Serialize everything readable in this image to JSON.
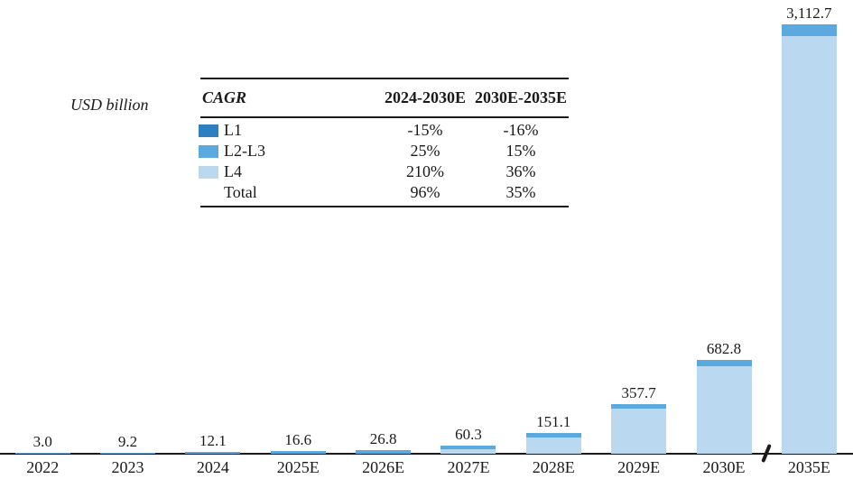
{
  "unit_label": "USD billion",
  "colors": {
    "l1": "#2E7FC2",
    "l2l3": "#5BA9DE",
    "l4": "#BAD8EF",
    "axis": "#1A1A1A"
  },
  "cagr_table": {
    "header": [
      "CAGR",
      "2024-2030E",
      "2030E-2035E"
    ],
    "rows": [
      {
        "label": "L1",
        "swatch": "l1",
        "col1": "-15%",
        "col2": "-16%"
      },
      {
        "label": "L2-L3",
        "swatch": "l2l3",
        "col1": "25%",
        "col2": "15%"
      },
      {
        "label": "L4",
        "swatch": "l4",
        "col1": "210%",
        "col2": "36%"
      },
      {
        "label": "Total",
        "swatch": "",
        "col1": "96%",
        "col2": "35%"
      }
    ]
  },
  "chart_data": {
    "type": "bar",
    "stacked": true,
    "title": "",
    "ylabel": "USD billion",
    "xlabel": "",
    "gridlines": false,
    "y_axis_shown": false,
    "x_axis_break_between": [
      "2030E",
      "2035E"
    ],
    "legend_entries": [
      "L1",
      "L2-L3",
      "L4"
    ],
    "categories": [
      "2022",
      "2023",
      "2024",
      "2025E",
      "2026E",
      "2027E",
      "2028E",
      "2029E",
      "2030E",
      "2035E"
    ],
    "totals": [
      3.0,
      9.2,
      12.1,
      16.6,
      26.8,
      60.3,
      151.1,
      357.7,
      682.8,
      3112.7
    ],
    "total_labels": [
      "3.0",
      "9.2",
      "12.1",
      "16.6",
      "26.8",
      "60.3",
      "151.1",
      "357.7",
      "682.8",
      "3,112.7"
    ],
    "series": [
      {
        "name": "L2-L3",
        "color_key": "l2l3",
        "values_estimated": true,
        "values": [
          3.0,
          9.2,
          12.1,
          16.6,
          26.8,
          26,
          33,
          33,
          46,
          85
        ]
      },
      {
        "name": "L4",
        "color_key": "l4",
        "values_estimated": true,
        "values": [
          0,
          0,
          0,
          0,
          0,
          34.3,
          118.1,
          324.7,
          636.8,
          3027.7
        ]
      }
    ]
  }
}
